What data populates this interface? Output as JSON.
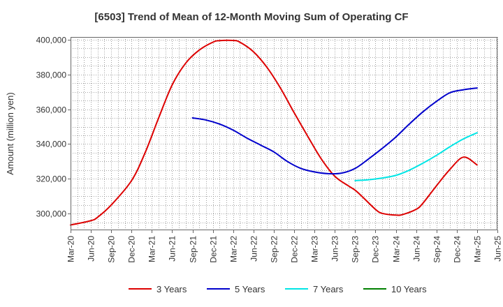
{
  "chart_data": {
    "type": "line",
    "title": "[6503]  Trend of Mean of 12-Month Moving Sum of Operating CF",
    "ylabel": "Amount (million yen)",
    "xlabel": "",
    "ylim": [
      290500,
      401500
    ],
    "yticks": [
      300000,
      320000,
      340000,
      360000,
      380000,
      400000
    ],
    "ytick_labels": [
      "300,000",
      "320,000",
      "340,000",
      "360,000",
      "380,000",
      "400,000"
    ],
    "xlim": [
      0,
      63
    ],
    "xticks": [
      0,
      3,
      6,
      9,
      12,
      15,
      18,
      21,
      24,
      27,
      30,
      33,
      36,
      39,
      42,
      45,
      48,
      51,
      54,
      57,
      60,
      63
    ],
    "xtick_labels": [
      "Mar-20",
      "Jun-20",
      "Sep-20",
      "Dec-20",
      "Mar-21",
      "Jun-21",
      "Sep-21",
      "Dec-21",
      "Mar-22",
      "Jun-22",
      "Sep-22",
      "Dec-22",
      "Mar-23",
      "Jun-23",
      "Sep-23",
      "Dec-23",
      "Mar-24",
      "Jun-24",
      "Sep-24",
      "Dec-24",
      "Mar-25",
      "Jun-25"
    ],
    "grid": true,
    "legend_position": "bottom",
    "series": [
      {
        "name": "3 Years",
        "color": "#dd0000",
        "x": [
          0,
          3,
          4,
          6,
          9,
          11,
          13,
          15,
          17,
          19,
          21,
          22,
          24,
          25,
          27,
          29,
          31,
          33,
          35,
          37,
          39,
          41,
          42,
          43,
          45,
          46,
          48,
          49,
          51,
          52,
          54,
          56,
          58,
          60
        ],
        "y": [
          293500,
          296000,
          298000,
          305000,
          319000,
          335000,
          355000,
          374000,
          386500,
          394000,
          398500,
          399400,
          399500,
          398500,
          393000,
          384000,
          372000,
          358000,
          344500,
          331500,
          321500,
          316000,
          313500,
          310000,
          302500,
          300200,
          299200,
          299500,
          302500,
          306000,
          316000,
          325500,
          332500,
          328000
        ]
      },
      {
        "name": "5 Years",
        "color": "#0000cc",
        "x": [
          18,
          20,
          22,
          24,
          26,
          28,
          30,
          32,
          34,
          36,
          38,
          40,
          42,
          44,
          46,
          48,
          50,
          52,
          54,
          56,
          58,
          60
        ],
        "y": [
          355000,
          353800,
          351500,
          348000,
          343500,
          339500,
          335500,
          330000,
          326000,
          324000,
          323000,
          323300,
          326000,
          331500,
          337500,
          344000,
          351500,
          358500,
          364500,
          369500,
          371200,
          372200
        ]
      },
      {
        "name": "7 Years",
        "color": "#00e5e5",
        "x": [
          42,
          44,
          46,
          48,
          50,
          52,
          54,
          56,
          58,
          60
        ],
        "y": [
          319000,
          319500,
          320500,
          322000,
          325000,
          329000,
          333500,
          338500,
          343000,
          346500
        ]
      },
      {
        "name": "10 Years",
        "color": "#008000",
        "x": [],
        "y": []
      }
    ]
  }
}
